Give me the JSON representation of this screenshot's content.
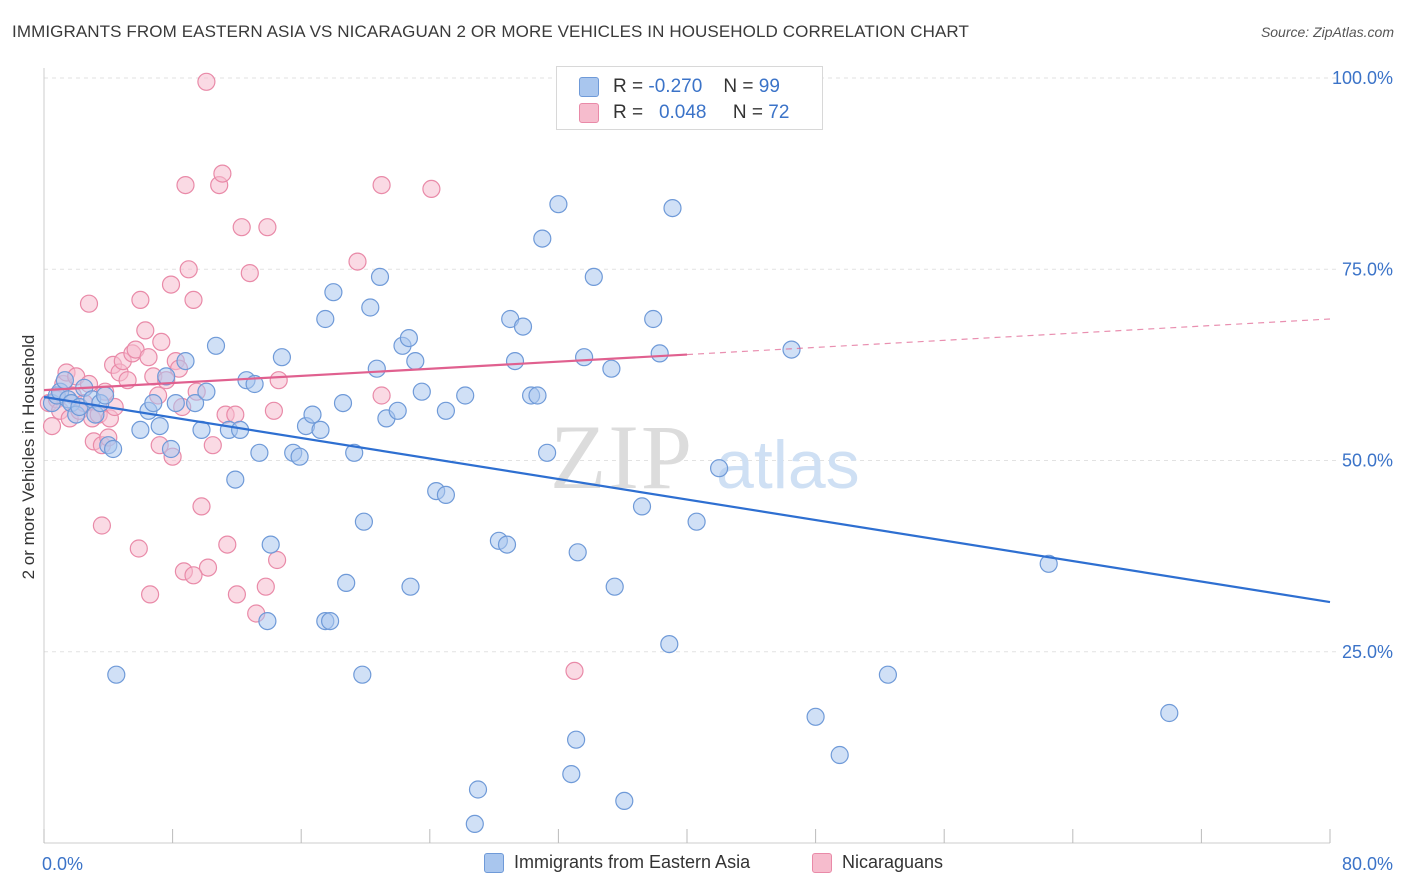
{
  "header": {
    "title": "IMMIGRANTS FROM EASTERN ASIA VS NICARAGUAN 2 OR MORE VEHICLES IN HOUSEHOLD CORRELATION CHART",
    "source": "Source: ZipAtlas.com"
  },
  "watermark": {
    "zip": "ZIP",
    "atlas": "atlas"
  },
  "legend_top": [
    {
      "r_label": "R =",
      "r_value": "-0.270",
      "n_label": "N =",
      "n_value": "99"
    },
    {
      "r_label": "R =",
      "r_value": "0.048",
      "n_label": "N =",
      "n_value": "72"
    }
  ],
  "legend_bottom": [
    {
      "label": "Immigrants from Eastern Asia"
    },
    {
      "label": "Nicaraguans"
    }
  ],
  "colors": {
    "blue_fill": "#a9c6ee",
    "blue_stroke": "#6f9ad8",
    "blue_line": "#2e6fd1",
    "pink_fill": "#f6bccd",
    "pink_stroke": "#e98aa8",
    "pink_line": "#e0608f",
    "tick_text": "#3b73c8",
    "grid": "#e2e2e2"
  },
  "chart_data": {
    "type": "scatter",
    "title": "IMMIGRANTS FROM EASTERN ASIA VS NICARAGUAN 2 OR MORE VEHICLES IN HOUSEHOLD CORRELATION CHART",
    "xlabel": "",
    "ylabel": "2 or more Vehicles in Household",
    "xlim": [
      0,
      80
    ],
    "ylim": [
      0,
      100
    ],
    "x_tick_labels": [
      "0.0%",
      "80.0%"
    ],
    "y_ticks": [
      25,
      50,
      75,
      100
    ],
    "y_tick_labels": [
      "25.0%",
      "50.0%",
      "75.0%",
      "100.0%"
    ],
    "grid": true,
    "legend_position": "top-center",
    "series": [
      {
        "name": "Immigrants from Eastern Asia",
        "color": "#a9c6ee",
        "r": -0.27,
        "n": 99,
        "trend": {
          "x": [
            0,
            80
          ],
          "y": [
            58.3,
            31.5
          ],
          "dashed_from": null
        },
        "points": [
          [
            0.5,
            57.5
          ],
          [
            0.8,
            58.5
          ],
          [
            1.0,
            59.0
          ],
          [
            1.3,
            60.5
          ],
          [
            1.5,
            58.0
          ],
          [
            1.7,
            57.5
          ],
          [
            2.0,
            56.0
          ],
          [
            2.2,
            57.0
          ],
          [
            2.5,
            59.5
          ],
          [
            3.0,
            58.0
          ],
          [
            3.2,
            56.0
          ],
          [
            3.5,
            57.5
          ],
          [
            3.8,
            58.5
          ],
          [
            4.0,
            52.0
          ],
          [
            4.3,
            51.5
          ],
          [
            4.5,
            22.0
          ],
          [
            6.0,
            54.0
          ],
          [
            6.5,
            56.5
          ],
          [
            6.8,
            57.5
          ],
          [
            7.2,
            54.5
          ],
          [
            7.6,
            61.0
          ],
          [
            7.9,
            51.5
          ],
          [
            8.2,
            57.5
          ],
          [
            8.8,
            63.0
          ],
          [
            9.4,
            57.5
          ],
          [
            9.8,
            54.0
          ],
          [
            10.1,
            59.0
          ],
          [
            10.7,
            65.0
          ],
          [
            11.5,
            54.0
          ],
          [
            11.9,
            47.5
          ],
          [
            12.2,
            54.0
          ],
          [
            12.6,
            60.5
          ],
          [
            13.1,
            60.0
          ],
          [
            13.4,
            51.0
          ],
          [
            14.1,
            39.0
          ],
          [
            13.9,
            29.0
          ],
          [
            14.8,
            63.5
          ],
          [
            15.5,
            51.0
          ],
          [
            15.9,
            50.5
          ],
          [
            16.3,
            54.5
          ],
          [
            16.7,
            56.0
          ],
          [
            17.2,
            54.0
          ],
          [
            17.5,
            68.5
          ],
          [
            17.5,
            29.0
          ],
          [
            17.8,
            29.0
          ],
          [
            18.0,
            72.0
          ],
          [
            18.6,
            57.5
          ],
          [
            18.8,
            34.0
          ],
          [
            19.3,
            51.0
          ],
          [
            19.8,
            22.0
          ],
          [
            19.9,
            42.0
          ],
          [
            20.3,
            70.0
          ],
          [
            20.7,
            62.0
          ],
          [
            20.9,
            74.0
          ],
          [
            21.3,
            55.5
          ],
          [
            22.0,
            56.5
          ],
          [
            22.3,
            65.0
          ],
          [
            22.7,
            66.0
          ],
          [
            22.8,
            33.5
          ],
          [
            23.1,
            63.0
          ],
          [
            23.5,
            59.0
          ],
          [
            24.4,
            46.0
          ],
          [
            25.0,
            45.5
          ],
          [
            25.0,
            56.5
          ],
          [
            26.2,
            58.5
          ],
          [
            27.0,
            7.0
          ],
          [
            26.8,
            2.5
          ],
          [
            28.3,
            39.5
          ],
          [
            28.8,
            39.0
          ],
          [
            29.0,
            68.5
          ],
          [
            29.3,
            63.0
          ],
          [
            29.8,
            67.5
          ],
          [
            30.3,
            58.5
          ],
          [
            30.7,
            58.5
          ],
          [
            31.0,
            79.0
          ],
          [
            31.3,
            51.0
          ],
          [
            32.0,
            83.5
          ],
          [
            32.8,
            9.0
          ],
          [
            33.1,
            13.5
          ],
          [
            33.2,
            38.0
          ],
          [
            33.6,
            63.5
          ],
          [
            34.2,
            74.0
          ],
          [
            35.3,
            62.0
          ],
          [
            35.5,
            33.5
          ],
          [
            36.1,
            5.5
          ],
          [
            37.2,
            44.0
          ],
          [
            37.9,
            68.5
          ],
          [
            38.3,
            64.0
          ],
          [
            38.9,
            26.0
          ],
          [
            39.1,
            83.0
          ],
          [
            40.6,
            42.0
          ],
          [
            42.0,
            49.0
          ],
          [
            46.5,
            64.5
          ],
          [
            48.0,
            16.5
          ],
          [
            49.5,
            11.5
          ],
          [
            52.5,
            22.0
          ],
          [
            62.5,
            36.5
          ],
          [
            70.0,
            17.0
          ],
          [
            43.0,
            100.0
          ]
        ]
      },
      {
        "name": "Nicaraguans",
        "color": "#f6bccd",
        "r": 0.048,
        "n": 72,
        "trend": {
          "x": [
            0,
            80
          ],
          "y": [
            59.2,
            68.5
          ],
          "dashed_from": 40
        },
        "points": [
          [
            0.3,
            57.5
          ],
          [
            0.5,
            54.5
          ],
          [
            0.8,
            58.0
          ],
          [
            1.0,
            56.5
          ],
          [
            1.2,
            60.0
          ],
          [
            1.4,
            61.5
          ],
          [
            1.6,
            55.5
          ],
          [
            1.8,
            58.5
          ],
          [
            2.0,
            61.0
          ],
          [
            2.2,
            56.5
          ],
          [
            2.5,
            57.5
          ],
          [
            2.8,
            60.0
          ],
          [
            3.0,
            55.5
          ],
          [
            3.1,
            52.5
          ],
          [
            3.4,
            56.0
          ],
          [
            3.6,
            52.0
          ],
          [
            3.8,
            59.0
          ],
          [
            4.1,
            55.5
          ],
          [
            4.3,
            62.5
          ],
          [
            4.4,
            57.0
          ],
          [
            4.7,
            61.5
          ],
          [
            4.9,
            63.0
          ],
          [
            5.2,
            60.5
          ],
          [
            5.5,
            64.0
          ],
          [
            5.7,
            64.5
          ],
          [
            6.0,
            71.0
          ],
          [
            6.3,
            67.0
          ],
          [
            6.5,
            63.5
          ],
          [
            6.8,
            61.0
          ],
          [
            7.1,
            58.5
          ],
          [
            7.3,
            65.5
          ],
          [
            7.6,
            60.5
          ],
          [
            7.9,
            73.0
          ],
          [
            8.2,
            63.0
          ],
          [
            8.4,
            62.0
          ],
          [
            8.6,
            57.0
          ],
          [
            8.8,
            86.0
          ],
          [
            9.0,
            75.0
          ],
          [
            9.3,
            71.0
          ],
          [
            9.5,
            59.0
          ],
          [
            9.8,
            44.0
          ],
          [
            10.2,
            36.0
          ],
          [
            10.5,
            52.0
          ],
          [
            10.9,
            86.0
          ],
          [
            11.3,
            56.0
          ],
          [
            11.4,
            39.0
          ],
          [
            12.0,
            32.5
          ],
          [
            12.3,
            80.5
          ],
          [
            12.8,
            74.5
          ],
          [
            13.2,
            30.0
          ],
          [
            13.9,
            80.5
          ],
          [
            14.5,
            37.0
          ],
          [
            2.8,
            70.5
          ],
          [
            3.6,
            41.5
          ],
          [
            5.9,
            38.5
          ],
          [
            6.6,
            32.5
          ],
          [
            10.1,
            99.5
          ],
          [
            13.8,
            33.5
          ],
          [
            14.3,
            56.5
          ],
          [
            14.6,
            60.5
          ],
          [
            19.5,
            76.0
          ],
          [
            21.0,
            86.0
          ],
          [
            21.0,
            58.5
          ],
          [
            24.1,
            85.5
          ],
          [
            11.9,
            56.0
          ],
          [
            8.7,
            35.5
          ],
          [
            9.3,
            35.0
          ],
          [
            11.1,
            87.5
          ],
          [
            8.0,
            50.5
          ],
          [
            7.2,
            52.0
          ],
          [
            4.0,
            53.0
          ],
          [
            33.0,
            22.5
          ]
        ]
      }
    ]
  }
}
